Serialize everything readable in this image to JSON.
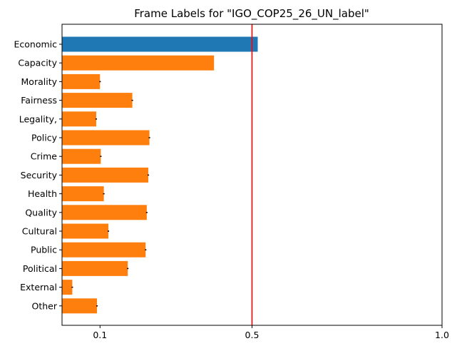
{
  "chart_data": {
    "type": "bar",
    "orientation": "horizontal",
    "title": "Frame Labels for \"IGO_COP25_26_UN_label\"",
    "xlabel": "",
    "ylabel": "",
    "xlim": [
      0.0,
      1.0
    ],
    "x_ticks": [
      {
        "value": 0.1,
        "label": "0.1"
      },
      {
        "value": 0.5,
        "label": "0.5"
      },
      {
        "value": 1.0,
        "label": "1.0"
      }
    ],
    "grid": false,
    "legend": "none",
    "reference_line": {
      "value": 0.5,
      "color": "#ff0000"
    },
    "categories": [
      "Economic",
      "Capacity",
      "Morality",
      "Fairness",
      "Legality,",
      "Policy",
      "Crime",
      "Security",
      "Health",
      "Quality",
      "Cultural",
      "Public",
      "Political",
      "External",
      "Other"
    ],
    "values": [
      0.515,
      0.4,
      0.1,
      0.185,
      0.09,
      0.23,
      0.102,
      0.227,
      0.11,
      0.223,
      0.122,
      0.22,
      0.173,
      0.027,
      0.092
    ],
    "errors": [
      0.0,
      0.0,
      0.002,
      0.002,
      0.002,
      0.002,
      0.002,
      0.002,
      0.002,
      0.002,
      0.002,
      0.002,
      0.002,
      0.002,
      0.002
    ],
    "colors": [
      "#1f77b4",
      "#ff7f0e",
      "#ff7f0e",
      "#ff7f0e",
      "#ff7f0e",
      "#ff7f0e",
      "#ff7f0e",
      "#ff7f0e",
      "#ff7f0e",
      "#ff7f0e",
      "#ff7f0e",
      "#ff7f0e",
      "#ff7f0e",
      "#ff7f0e",
      "#ff7f0e"
    ]
  }
}
